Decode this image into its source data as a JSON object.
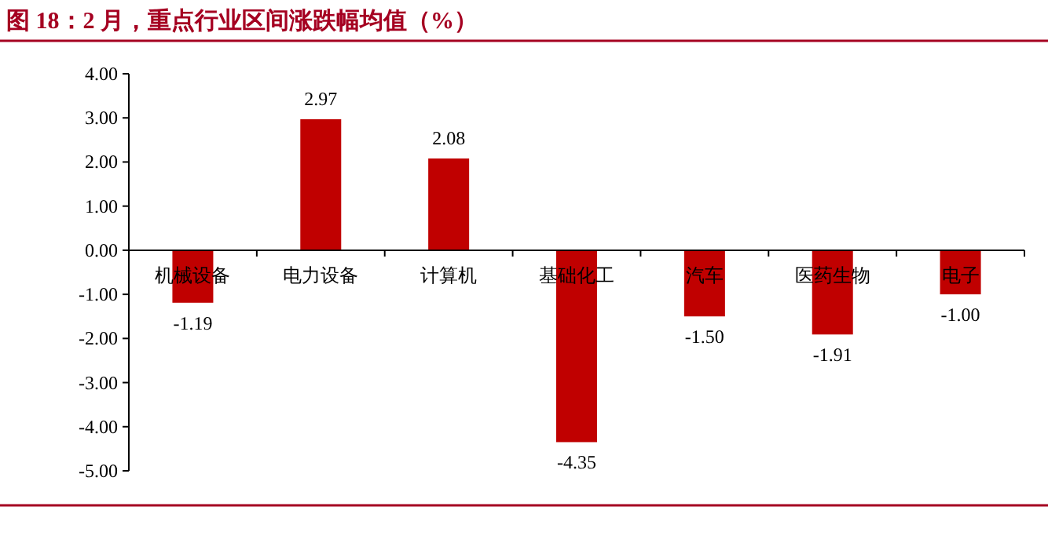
{
  "chart_data": {
    "type": "bar",
    "title": "图 18：2 月，重点行业区间涨跌幅均值（%）",
    "categories": [
      "机械设备",
      "电力设备",
      "计算机",
      "基础化工",
      "汽车",
      "医药生物",
      "电子"
    ],
    "values": [
      -1.19,
      2.97,
      2.08,
      -4.35,
      -1.5,
      -1.91,
      -1.0
    ],
    "value_labels": [
      "-1.19",
      "2.97",
      "2.08",
      "-4.35",
      "-1.50",
      "-1.91",
      "-1.00"
    ],
    "color": "#c00000",
    "ylim": [
      -5,
      4
    ],
    "yticks": [
      {
        "value": 4,
        "label": "4.00"
      },
      {
        "value": 3,
        "label": "3.00"
      },
      {
        "value": 2,
        "label": "2.00"
      },
      {
        "value": 1,
        "label": "1.00"
      },
      {
        "value": 0,
        "label": "0.00"
      },
      {
        "value": -1,
        "label": "-1.00"
      },
      {
        "value": -2,
        "label": "-2.00"
      },
      {
        "value": -3,
        "label": "-3.00"
      },
      {
        "value": -4,
        "label": "-4.00"
      },
      {
        "value": -5,
        "label": "-5.00"
      }
    ],
    "grid": false
  }
}
